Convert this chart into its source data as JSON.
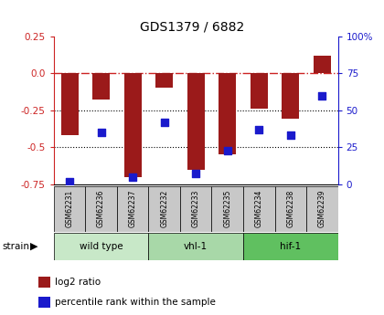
{
  "title": "GDS1379 / 6882",
  "samples": [
    "GSM62231",
    "GSM62236",
    "GSM62237",
    "GSM62232",
    "GSM62233",
    "GSM62235",
    "GSM62234",
    "GSM62238",
    "GSM62239"
  ],
  "log2_ratio": [
    -0.42,
    -0.18,
    -0.7,
    -0.1,
    -0.65,
    -0.55,
    -0.24,
    -0.31,
    0.12
  ],
  "percentile_pct": [
    2,
    35,
    5,
    42,
    7,
    23,
    37,
    33,
    60
  ],
  "groups": [
    {
      "label": "wild type",
      "start": 0,
      "end": 3,
      "color": "#c8e8c8"
    },
    {
      "label": "vhl-1",
      "start": 3,
      "end": 6,
      "color": "#a8d8a8"
    },
    {
      "label": "hif-1",
      "start": 6,
      "end": 9,
      "color": "#60c060"
    }
  ],
  "ylim_left": [
    -0.75,
    0.25
  ],
  "ylim_right": [
    0,
    100
  ],
  "left_ticks": [
    0.25,
    0.0,
    -0.25,
    -0.5,
    -0.75
  ],
  "right_ticks": [
    100,
    75,
    50,
    25,
    0
  ],
  "bar_color": "#9b1a1a",
  "dot_color": "#1a1acc",
  "zero_line_color": "#cc2222",
  "dotted_lines": [
    -0.25,
    -0.5
  ],
  "bg_color": "#ffffff",
  "plot_bg": "#ffffff",
  "tick_color_left": "#cc2222",
  "tick_color_right": "#1a1acc",
  "label_bg": "#c8c8c8",
  "legend_log2": "log2 ratio",
  "legend_pct": "percentile rank within the sample"
}
